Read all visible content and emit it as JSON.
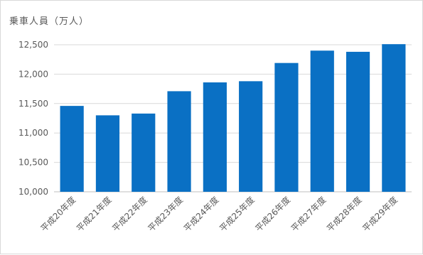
{
  "chart_data": {
    "type": "bar",
    "title": "",
    "xlabel": "",
    "ylabel": "乗車人員（万人）",
    "ylim": [
      10000,
      12500
    ],
    "yticks": [
      10000,
      10500,
      11000,
      11500,
      12000,
      12500
    ],
    "ytick_labels": [
      "10,000",
      "10,500",
      "11,000",
      "11,500",
      "12,000",
      "12,500"
    ],
    "categories": [
      "平成20年度",
      "平成21年度",
      "平成22年度",
      "平成23年度",
      "平成24年度",
      "平成25年度",
      "平成26年度",
      "平成27年度",
      "平成28年度",
      "平成29年度"
    ],
    "values": [
      11460,
      11300,
      11330,
      11710,
      11860,
      11880,
      12190,
      12400,
      12380,
      12510
    ],
    "grid": true,
    "bar_color": "#0a70c4"
  }
}
